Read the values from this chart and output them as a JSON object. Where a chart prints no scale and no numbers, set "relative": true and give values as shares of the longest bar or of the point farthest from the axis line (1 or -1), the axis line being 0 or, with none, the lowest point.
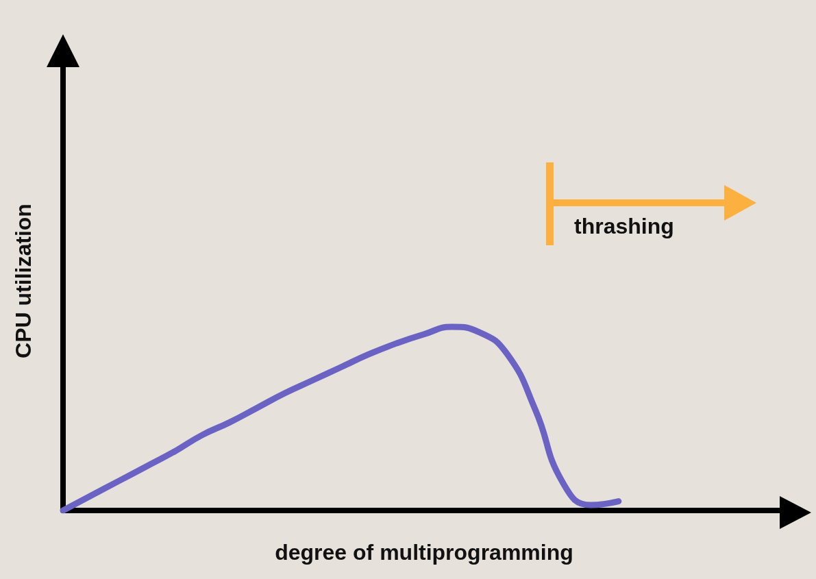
{
  "chart_data": {
    "type": "line",
    "relative": true,
    "xlabel": "degree of multiprogramming",
    "ylabel": "CPU utilization",
    "categories": [
      null,
      null,
      null,
      null,
      null,
      null,
      null,
      null,
      null,
      null,
      null,
      null,
      null,
      null,
      null,
      null,
      null,
      null,
      null,
      null,
      null,
      null,
      null,
      null,
      null,
      null,
      null
    ],
    "series": [
      {
        "color": "#6b63c4",
        "values": [
          0,
          0.08,
          0.16,
          0.24,
          0.32,
          0.41,
          0.48,
          0.56,
          0.64,
          0.71,
          0.78,
          0.85,
          0.91,
          0.96,
          1.0,
          0.97,
          0.85,
          0.55,
          0.15,
          0.03,
          0.05,
          null,
          null,
          null,
          null,
          null,
          null
        ]
      }
    ],
    "annotations": [
      "thrashing"
    ],
    "grid": false,
    "line_style": "solid"
  }
}
